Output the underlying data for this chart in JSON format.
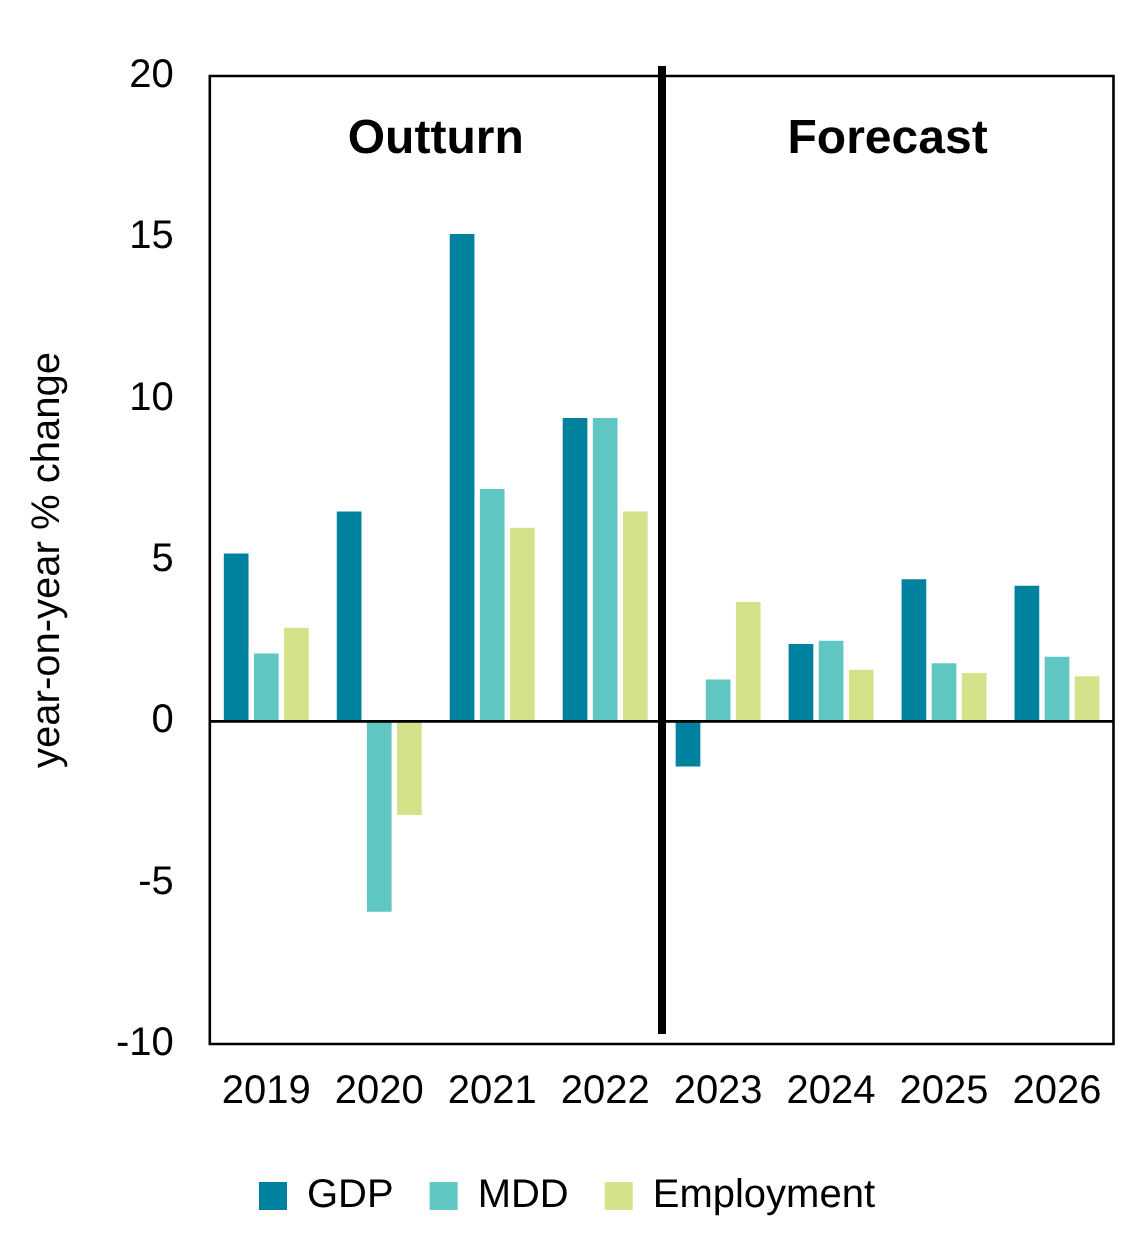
{
  "chart_data": {
    "type": "bar",
    "ylabel": "year-on-year % change",
    "categories": [
      "2019",
      "2020",
      "2021",
      "2022",
      "2023",
      "2024",
      "2025",
      "2026"
    ],
    "series": [
      {
        "name": "GDP",
        "color": "#00829e",
        "values": [
          5.2,
          6.5,
          15.1,
          9.4,
          -1.4,
          2.4,
          4.4,
          4.2
        ]
      },
      {
        "name": "MDD",
        "color": "#5fc6c2",
        "values": [
          2.1,
          -5.9,
          7.2,
          9.4,
          1.3,
          2.5,
          1.8,
          2.0
        ]
      },
      {
        "name": "Employment",
        "color": "#d4e38a",
        "values": [
          2.9,
          -2.9,
          6.0,
          6.5,
          3.7,
          1.6,
          1.5,
          1.4
        ]
      }
    ],
    "ylim": [
      -10,
      20
    ],
    "yticks": [
      -10,
      -5,
      0,
      5,
      10,
      15,
      20
    ],
    "annotations": [
      "Outturn",
      "Forecast"
    ],
    "legend": "bottom"
  }
}
